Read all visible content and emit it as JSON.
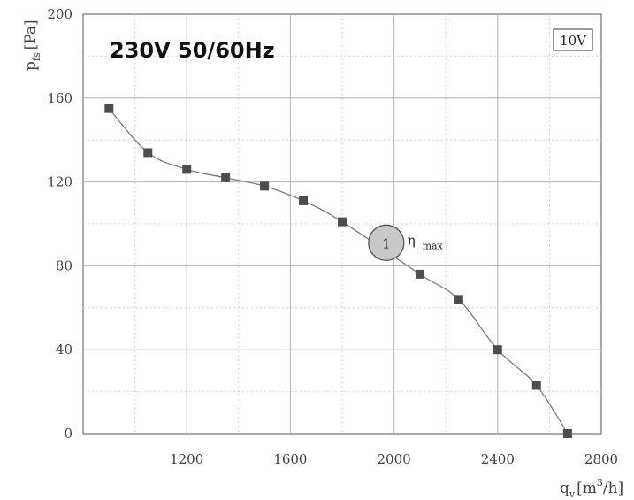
{
  "chart_data": {
    "type": "line",
    "title": "230V 50/60Hz",
    "badge": "10V",
    "ylabel": {
      "main": "p",
      "sub": "fs",
      "unit": "[Pa]"
    },
    "xlabel": {
      "main": "q",
      "sub": "v",
      "unit_pre": "[m",
      "unit_sup": "3",
      "unit_post": "/h]"
    },
    "xlim": [
      800,
      2800
    ],
    "ylim": [
      0,
      200
    ],
    "x_ticks": [
      "1200",
      "1600",
      "2000",
      "2400",
      "2800"
    ],
    "y_ticks": [
      "0",
      "40",
      "80",
      "120",
      "160",
      "200"
    ],
    "grid": true,
    "series": [
      {
        "x": [
          900,
          1050,
          1200,
          1350,
          1500,
          1650,
          1800,
          2100,
          2250,
          2400,
          2550,
          2670
        ],
        "y": [
          155,
          134,
          126,
          122,
          118,
          111,
          101,
          76,
          64,
          40,
          23,
          0
        ]
      }
    ],
    "operating_point": {
      "x": 1970,
      "y": 91,
      "label": "1",
      "annotation_main": "η",
      "annotation_sub": "max"
    }
  }
}
